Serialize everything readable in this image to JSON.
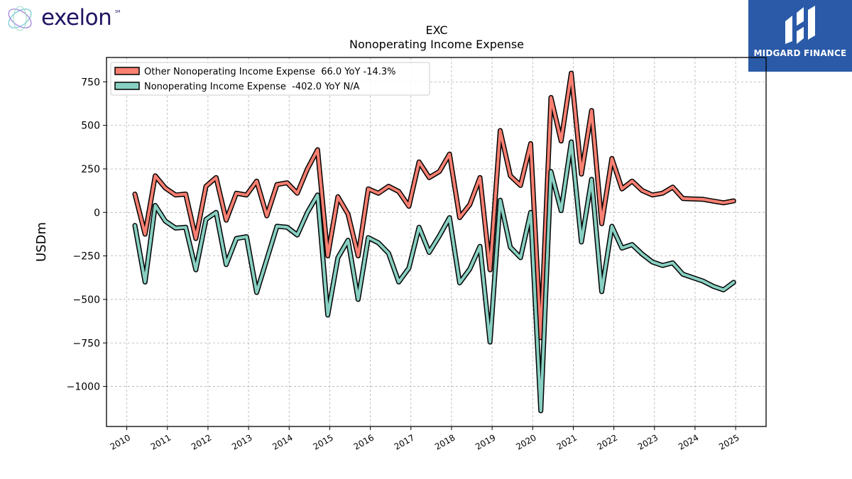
{
  "brand": {
    "left_logo_text": "exelon",
    "left_logo_mark": "SM",
    "left_logo_icon": "exelon-swirl-icon",
    "right_logo_text": "MIDGARD FINANCE",
    "right_logo_icon": "midgard-m-icon",
    "right_logo_bg": "#2a5aa8"
  },
  "chart_data": {
    "type": "line",
    "title": "EXC",
    "subtitle": "Nonoperating Income Expense",
    "ylabel": "USDm",
    "xlabel": "",
    "ylim": [
      -1230,
      890
    ],
    "xlim": [
      2009.5,
      2025.75
    ],
    "yticks": [
      750,
      500,
      250,
      0,
      -250,
      -500,
      -750,
      -1000
    ],
    "ytick_labels": [
      "750",
      "500",
      "250",
      "0",
      "−250",
      "−500",
      "−750",
      "−1000"
    ],
    "xticks": [
      2010,
      2011,
      2012,
      2013,
      2014,
      2015,
      2016,
      2017,
      2018,
      2019,
      2020,
      2021,
      2022,
      2023,
      2024,
      2025
    ],
    "xtick_labels": [
      "2010",
      "2011",
      "2012",
      "2013",
      "2014",
      "2015",
      "2016",
      "2017",
      "2018",
      "2019",
      "2020",
      "2021",
      "2022",
      "2023",
      "2024",
      "2025"
    ],
    "grid": true,
    "legend_position": "top-left",
    "series": [
      {
        "name": "Other Nonoperating Income Expense  66.0 YoY -14.3%",
        "color": "#fa8072",
        "points": [
          [
            2010.2,
            105
          ],
          [
            2010.45,
            -125
          ],
          [
            2010.7,
            210
          ],
          [
            2010.95,
            140
          ],
          [
            2011.2,
            100
          ],
          [
            2011.45,
            105
          ],
          [
            2011.7,
            -150
          ],
          [
            2011.95,
            150
          ],
          [
            2012.2,
            200
          ],
          [
            2012.45,
            -45
          ],
          [
            2012.7,
            110
          ],
          [
            2012.95,
            100
          ],
          [
            2013.2,
            180
          ],
          [
            2013.45,
            -20
          ],
          [
            2013.7,
            160
          ],
          [
            2013.95,
            170
          ],
          [
            2014.2,
            110
          ],
          [
            2014.45,
            250
          ],
          [
            2014.7,
            360
          ],
          [
            2014.95,
            -250
          ],
          [
            2015.2,
            90
          ],
          [
            2015.45,
            -10
          ],
          [
            2015.7,
            -250
          ],
          [
            2015.95,
            135
          ],
          [
            2016.2,
            110
          ],
          [
            2016.45,
            150
          ],
          [
            2016.7,
            120
          ],
          [
            2016.95,
            35
          ],
          [
            2017.2,
            290
          ],
          [
            2017.45,
            200
          ],
          [
            2017.7,
            235
          ],
          [
            2017.95,
            335
          ],
          [
            2018.2,
            -30
          ],
          [
            2018.45,
            45
          ],
          [
            2018.7,
            200
          ],
          [
            2018.95,
            -330
          ],
          [
            2019.2,
            470
          ],
          [
            2019.45,
            210
          ],
          [
            2019.7,
            155
          ],
          [
            2019.95,
            395
          ],
          [
            2020.2,
            -720
          ],
          [
            2020.45,
            660
          ],
          [
            2020.7,
            410
          ],
          [
            2020.95,
            800
          ],
          [
            2021.2,
            220
          ],
          [
            2021.45,
            585
          ],
          [
            2021.7,
            -65
          ],
          [
            2021.95,
            310
          ],
          [
            2022.2,
            135
          ],
          [
            2022.45,
            180
          ],
          [
            2022.7,
            125
          ],
          [
            2022.95,
            100
          ],
          [
            2023.2,
            110
          ],
          [
            2023.45,
            145
          ],
          [
            2023.7,
            80
          ],
          [
            2023.95,
            77
          ],
          [
            2024.2,
            75
          ],
          [
            2024.45,
            65
          ],
          [
            2024.7,
            55
          ],
          [
            2024.95,
            66
          ]
        ]
      },
      {
        "name": "Nonoperating Income Expense  -402.0 YoY N/A",
        "color": "#88d0c2",
        "points": [
          [
            2010.2,
            -75
          ],
          [
            2010.45,
            -400
          ],
          [
            2010.7,
            40
          ],
          [
            2010.95,
            -50
          ],
          [
            2011.2,
            -90
          ],
          [
            2011.45,
            -85
          ],
          [
            2011.7,
            -330
          ],
          [
            2011.95,
            -40
          ],
          [
            2012.2,
            0
          ],
          [
            2012.45,
            -300
          ],
          [
            2012.7,
            -150
          ],
          [
            2012.95,
            -140
          ],
          [
            2013.2,
            -460
          ],
          [
            2013.45,
            -270
          ],
          [
            2013.7,
            -80
          ],
          [
            2013.95,
            -85
          ],
          [
            2014.2,
            -130
          ],
          [
            2014.45,
            0
          ],
          [
            2014.7,
            100
          ],
          [
            2014.95,
            -590
          ],
          [
            2015.2,
            -260
          ],
          [
            2015.45,
            -160
          ],
          [
            2015.7,
            -500
          ],
          [
            2015.95,
            -145
          ],
          [
            2016.2,
            -175
          ],
          [
            2016.45,
            -235
          ],
          [
            2016.7,
            -400
          ],
          [
            2016.95,
            -320
          ],
          [
            2017.2,
            -85
          ],
          [
            2017.45,
            -230
          ],
          [
            2017.7,
            -135
          ],
          [
            2017.95,
            -30
          ],
          [
            2018.2,
            -405
          ],
          [
            2018.45,
            -325
          ],
          [
            2018.7,
            -195
          ],
          [
            2018.95,
            -745
          ],
          [
            2019.2,
            70
          ],
          [
            2019.45,
            -200
          ],
          [
            2019.7,
            -260
          ],
          [
            2019.95,
            0
          ],
          [
            2020.2,
            -1140
          ],
          [
            2020.45,
            235
          ],
          [
            2020.7,
            10
          ],
          [
            2020.95,
            405
          ],
          [
            2021.2,
            -170
          ],
          [
            2021.45,
            190
          ],
          [
            2021.7,
            -455
          ],
          [
            2021.95,
            -80
          ],
          [
            2022.2,
            -205
          ],
          [
            2022.45,
            -185
          ],
          [
            2022.7,
            -240
          ],
          [
            2022.95,
            -285
          ],
          [
            2023.2,
            -305
          ],
          [
            2023.45,
            -290
          ],
          [
            2023.7,
            -355
          ],
          [
            2023.95,
            -375
          ],
          [
            2024.2,
            -395
          ],
          [
            2024.45,
            -425
          ],
          [
            2024.7,
            -445
          ],
          [
            2024.95,
            -402
          ]
        ]
      }
    ]
  }
}
